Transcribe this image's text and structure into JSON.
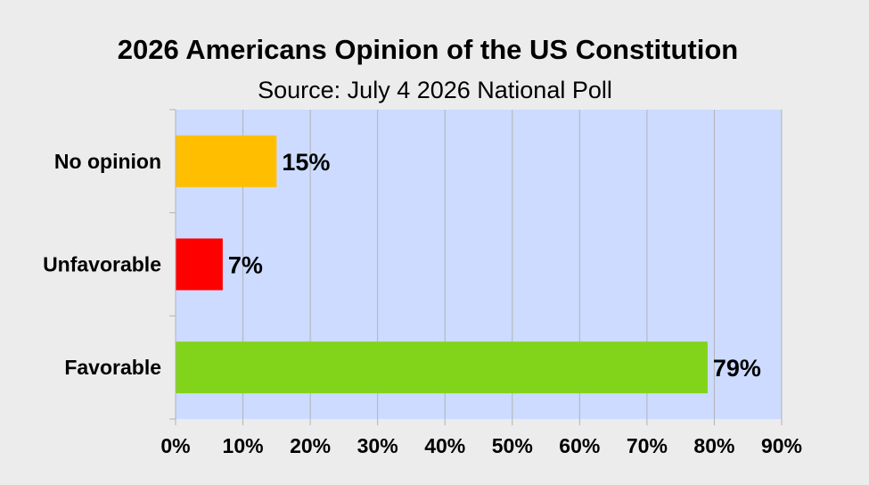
{
  "chart_data": {
    "type": "bar",
    "orientation": "horizontal",
    "title": "2026 Americans Opinion of the US Constitution",
    "subtitle": "Source: July 4 2026 National Poll",
    "categories": [
      "No opinion",
      "Unfavorable",
      "Favorable"
    ],
    "values": [
      15,
      7,
      79
    ],
    "data_labels": [
      "15%",
      "7%",
      "79%"
    ],
    "bar_colors": [
      "#ffbf00",
      "#ff0000",
      "#81d41a"
    ],
    "xlim": [
      0,
      90
    ],
    "xticks": [
      0,
      10,
      20,
      30,
      40,
      50,
      60,
      70,
      80,
      90
    ],
    "xtick_labels": [
      "0%",
      "10%",
      "20%",
      "30%",
      "40%",
      "50%",
      "60%",
      "70%",
      "80%",
      "90%"
    ],
    "xlabel": "",
    "ylabel": "",
    "grid": "vertical",
    "legend": "none",
    "plot_background": "#ccdbff",
    "page_background": "#ececec"
  }
}
